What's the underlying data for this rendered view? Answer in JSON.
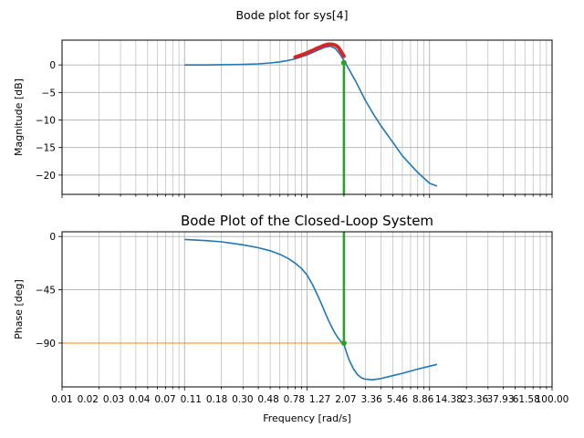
{
  "figure": {
    "suptitle": "Bode plot for sys[4]",
    "colors": {
      "magnitude_line": "#1f77b4",
      "phase_line": "#1f77b4",
      "peak_highlight": "#d62728",
      "crossover_marker": "#2ca02c",
      "reference_line": "#ff7f0e",
      "grid": "#b0b0b0"
    }
  },
  "chart_data": [
    {
      "type": "line",
      "panel": "magnitude",
      "title": "",
      "xlabel": "",
      "ylabel": "Magnitude [dB]",
      "xscale": "log",
      "xlim": [
        0.01,
        100
      ],
      "ylim": [
        -23.5,
        4.5
      ],
      "yticks": [
        0,
        -5,
        -10,
        -15,
        -20
      ],
      "ytick_labels": [
        "0",
        "−5",
        "−10",
        "−15",
        "−20"
      ],
      "grid": true,
      "series": [
        {
          "role": "response",
          "x": [
            0.1,
            0.15,
            0.2,
            0.3,
            0.4,
            0.5,
            0.6,
            0.7,
            0.8,
            1.0,
            1.2,
            1.4,
            1.55,
            1.7,
            1.85,
            2.0,
            2.2,
            2.5,
            3.0,
            3.5,
            4.0,
            5.0,
            6.0,
            8.0,
            10.0,
            11.5
          ],
          "y": [
            0.0,
            0.0,
            0.05,
            0.1,
            0.2,
            0.35,
            0.55,
            0.8,
            1.1,
            1.8,
            2.6,
            3.2,
            3.4,
            3.0,
            2.0,
            0.8,
            -0.8,
            -3.0,
            -6.5,
            -9.0,
            -11.0,
            -14.0,
            -16.5,
            -19.5,
            -21.5,
            -22.0
          ]
        },
        {
          "role": "peak-highlight",
          "x": [
            0.8,
            0.9,
            1.0,
            1.1,
            1.2,
            1.3,
            1.4,
            1.5,
            1.6,
            1.7,
            1.8,
            1.9,
            2.0
          ],
          "y": [
            1.4,
            1.8,
            2.2,
            2.6,
            3.0,
            3.3,
            3.6,
            3.75,
            3.75,
            3.6,
            3.2,
            2.4,
            1.6
          ]
        },
        {
          "role": "crossover",
          "x": [
            2.0,
            2.0
          ],
          "y": [
            0.4,
            -23.5
          ]
        }
      ]
    },
    {
      "type": "line",
      "panel": "phase",
      "title": "Bode Plot of the Closed-Loop System",
      "xlabel": "Frequency [rad/s]",
      "ylabel": "Phase [deg]",
      "xscale": "log",
      "xlim": [
        0.01,
        100
      ],
      "ylim": [
        -127,
        4
      ],
      "yticks": [
        0,
        -45,
        -90
      ],
      "ytick_labels": [
        "0",
        "−45",
        "−90"
      ],
      "xtick_labels": [
        "0.01",
        "0.02",
        "0.03",
        "0.04",
        "0.07",
        "0.11",
        "0.18",
        "0.30",
        "0.48",
        "0.78",
        "1.27",
        "2.07",
        "3.36",
        "5.46",
        "8.86",
        "14.38",
        "23.36",
        "37.93",
        "61.58",
        "100.00"
      ],
      "grid": true,
      "series": [
        {
          "role": "response",
          "x": [
            0.1,
            0.15,
            0.2,
            0.3,
            0.4,
            0.5,
            0.6,
            0.7,
            0.8,
            0.9,
            1.0,
            1.1,
            1.2,
            1.3,
            1.4,
            1.5,
            1.6,
            1.7,
            1.8,
            1.9,
            2.0,
            2.1,
            2.2,
            2.4,
            2.6,
            2.8,
            3.0,
            3.4,
            4.0,
            5.0,
            6.0,
            8.0,
            10.0,
            11.5
          ],
          "y": [
            -2.5,
            -3.5,
            -4.5,
            -7.0,
            -9.5,
            -12.0,
            -15.0,
            -18.5,
            -22.5,
            -27.0,
            -32.5,
            -40.0,
            -48.0,
            -56.0,
            -64.0,
            -71.0,
            -77.0,
            -82.0,
            -86.0,
            -89.0,
            -91.0,
            -98.0,
            -104.0,
            -112.0,
            -117.0,
            -119.5,
            -120.5,
            -121.0,
            -120.0,
            -117.5,
            -115.5,
            -112.0,
            -109.5,
            -108.0
          ]
        },
        {
          "role": "reference",
          "x": [
            0.01,
            2.0
          ],
          "y": [
            -90,
            -90
          ]
        },
        {
          "role": "crossover",
          "x": [
            2.0,
            2.0
          ],
          "y": [
            4,
            -90
          ]
        }
      ]
    }
  ]
}
